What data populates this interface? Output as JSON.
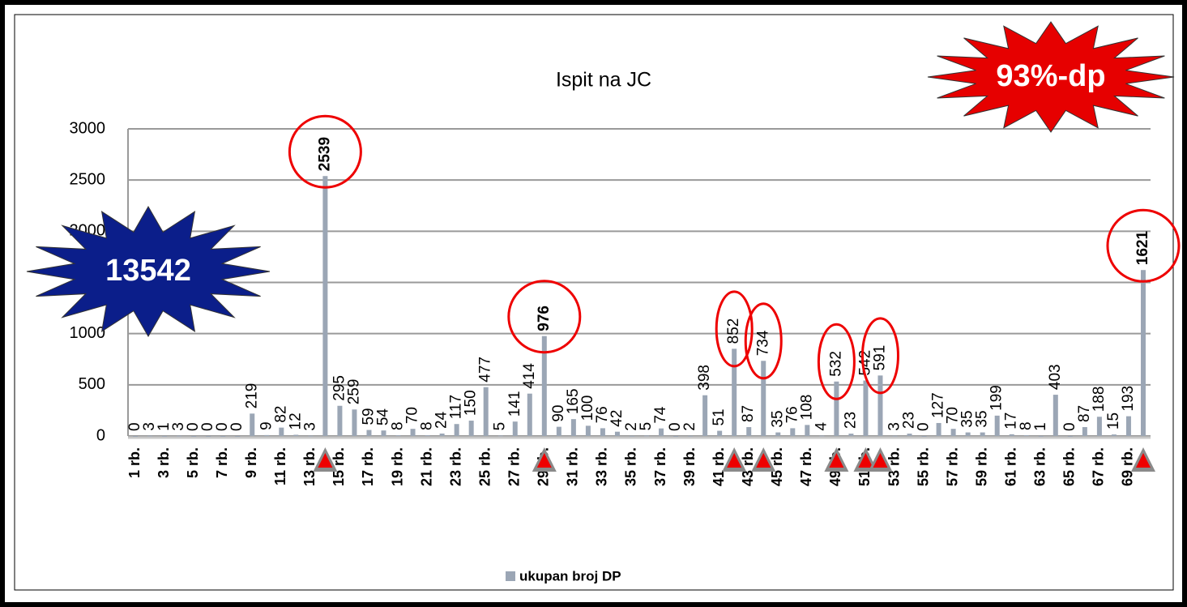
{
  "chart_data": {
    "type": "bar",
    "title": "Ispit na JC",
    "categories": [
      "1 rb.",
      null,
      "3 rb.",
      null,
      "5 rb.",
      null,
      "7 rb.",
      null,
      "9 rb.",
      null,
      "11 rb.",
      null,
      "13 rb.",
      null,
      "15 rb.",
      null,
      "17 rb.",
      null,
      "19 rb.",
      null,
      "21 rb.",
      null,
      "23 rb.",
      null,
      "25 rb.",
      null,
      "27 rb.",
      null,
      "29 rb.",
      null,
      "31 rb.",
      null,
      "33 rb.",
      null,
      "35 rb.",
      null,
      "37 rb.",
      null,
      "39 rb.",
      null,
      "41 rb.",
      null,
      "43 rb.",
      null,
      "45 rb.",
      null,
      "47 rb.",
      null,
      "49 rb.",
      null,
      "51 rb.",
      null,
      "53 rb.",
      null,
      "55 rb.",
      null,
      "57 rb.",
      null,
      "59 rb.",
      null,
      "61 rb.",
      null,
      "63 rb.",
      null,
      "65 rb.",
      null,
      "67 rb.",
      null,
      "69 rb.",
      null
    ],
    "series": [
      {
        "name": "ukupan broj DP",
        "color": "#9ba6b5",
        "values": [
          0,
          3,
          1,
          3,
          0,
          0,
          0,
          0,
          219,
          9,
          82,
          12,
          3,
          2539,
          295,
          259,
          59,
          54,
          8,
          70,
          8,
          24,
          117,
          150,
          477,
          5,
          141,
          414,
          976,
          90,
          165,
          100,
          76,
          42,
          2,
          5,
          74,
          0,
          2,
          398,
          51,
          852,
          87,
          734,
          35,
          76,
          108,
          4,
          532,
          23,
          542,
          591,
          3,
          23,
          0,
          127,
          70,
          35,
          35,
          199,
          17,
          8,
          1,
          403,
          0,
          87,
          188,
          15,
          193,
          1621
        ]
      }
    ],
    "ylim": [
      0,
      3000
    ],
    "yticks": [
      0,
      500,
      1000,
      1500,
      2000,
      2500,
      3000
    ],
    "grid": true,
    "legend": "bottom",
    "annotations": [
      "13542",
      "93%-dp"
    ]
  }
}
